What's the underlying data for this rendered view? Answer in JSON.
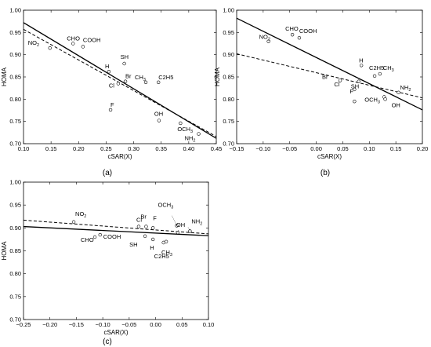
{
  "chart_data": [
    {
      "id": "a",
      "type": "scatter",
      "caption": "(a)",
      "xlabel": "cSAR(X)",
      "ylabel": "HOMA",
      "xlim": [
        0.1,
        0.45
      ],
      "ylim": [
        0.7,
        1.0
      ],
      "xticks": [
        "0.10",
        "0.15",
        "0.20",
        "0.25",
        "0.30",
        "0.35",
        "0.40",
        "0.45"
      ],
      "yticks": [
        "0.70",
        "0.75",
        "0.80",
        "0.85",
        "0.90",
        "0.95",
        "1.00"
      ],
      "points": [
        {
          "label": "NO2",
          "x": 0.148,
          "y": 0.915
        },
        {
          "label": "CHO",
          "x": 0.19,
          "y": 0.925
        },
        {
          "label": "COOH",
          "x": 0.208,
          "y": 0.918
        },
        {
          "label": "H",
          "x": 0.255,
          "y": 0.862
        },
        {
          "label": "SH",
          "x": 0.283,
          "y": 0.88
        },
        {
          "label": "Br",
          "x": 0.285,
          "y": 0.84
        },
        {
          "label": "Cl",
          "x": 0.272,
          "y": 0.835
        },
        {
          "label": "CH3",
          "x": 0.322,
          "y": 0.838
        },
        {
          "label": "C2H5",
          "x": 0.345,
          "y": 0.838
        },
        {
          "label": "F",
          "x": 0.258,
          "y": 0.776
        },
        {
          "label": "OH",
          "x": 0.346,
          "y": 0.752
        },
        {
          "label": "OCH3",
          "x": 0.385,
          "y": 0.746
        },
        {
          "label": "NH2",
          "x": 0.418,
          "y": 0.722
        }
      ],
      "lines": [
        {
          "style": "solid",
          "x": [
            0.1,
            0.45
          ],
          "y": [
            0.972,
            0.712
          ]
        },
        {
          "style": "dashed",
          "x": [
            0.1,
            0.45
          ],
          "y": [
            0.957,
            0.716
          ]
        }
      ]
    },
    {
      "id": "b",
      "type": "scatter",
      "caption": "(b)",
      "xlabel": "cSAR(X)",
      "ylabel": "HOMA",
      "xlim": [
        -0.15,
        0.2
      ],
      "ylim": [
        0.7,
        1.0
      ],
      "xticks": [
        "−0.15",
        "−0.10",
        "−0.05",
        "0.00",
        "0.05",
        "0.10",
        "0.15",
        "0.20"
      ],
      "yticks": [
        "0.70",
        "0.75",
        "0.80",
        "0.85",
        "0.90",
        "0.95",
        "1.00"
      ],
      "points": [
        {
          "label": "NO2",
          "x": -0.09,
          "y": 0.93
        },
        {
          "label": "CHO",
          "x": -0.045,
          "y": 0.945
        },
        {
          "label": "COOH",
          "x": -0.032,
          "y": 0.938
        },
        {
          "label": "H",
          "x": 0.085,
          "y": 0.876
        },
        {
          "label": "C2H5",
          "x": 0.11,
          "y": 0.852
        },
        {
          "label": "CH3",
          "x": 0.12,
          "y": 0.857
        },
        {
          "label": "Br",
          "x": 0.045,
          "y": 0.842
        },
        {
          "label": "SH",
          "x": 0.08,
          "y": 0.84
        },
        {
          "label": "Cl",
          "x": 0.072,
          "y": 0.822
        },
        {
          "label": "F",
          "x": 0.072,
          "y": 0.795
        },
        {
          "label": "OCH3",
          "x": 0.128,
          "y": 0.805
        },
        {
          "label": "OH",
          "x": 0.13,
          "y": 0.8
        },
        {
          "label": "NH2",
          "x": 0.155,
          "y": 0.815
        }
      ],
      "lines": [
        {
          "style": "solid",
          "x": [
            -0.15,
            0.2
          ],
          "y": [
            0.982,
            0.776
          ]
        },
        {
          "style": "dashed",
          "x": [
            -0.15,
            0.2
          ],
          "y": [
            0.902,
            0.803
          ]
        }
      ]
    },
    {
      "id": "c",
      "type": "scatter",
      "caption": "(c)",
      "xlabel": "cSAR(X)",
      "ylabel": "HOMA",
      "xlim": [
        -0.25,
        0.1
      ],
      "ylim": [
        0.7,
        1.0
      ],
      "xticks": [
        "−0.25",
        "−0.20",
        "−0.15",
        "−0.10",
        "−0.05",
        "0.00",
        "0.05",
        "0.10"
      ],
      "yticks": [
        "0.70",
        "0.75",
        "0.80",
        "0.85",
        "0.90",
        "0.95",
        "1.00"
      ],
      "points": [
        {
          "label": "NO2",
          "x": -0.155,
          "y": 0.913
        },
        {
          "label": "CHO",
          "x": -0.115,
          "y": 0.88
        },
        {
          "label": "COOH",
          "x": -0.105,
          "y": 0.885
        },
        {
          "label": "Cl",
          "x": -0.032,
          "y": 0.903
        },
        {
          "label": "Br",
          "x": -0.018,
          "y": 0.903
        },
        {
          "label": "F",
          "x": -0.005,
          "y": 0.9
        },
        {
          "label": "SH",
          "x": -0.02,
          "y": 0.882
        },
        {
          "label": "H",
          "x": -0.005,
          "y": 0.875
        },
        {
          "label": "C2H5",
          "x": 0.015,
          "y": 0.868
        },
        {
          "label": "CH3",
          "x": 0.02,
          "y": 0.87
        },
        {
          "label": "OCH3",
          "x": 0.04,
          "y": 0.905
        },
        {
          "label": "OH",
          "x": 0.042,
          "y": 0.89
        },
        {
          "label": "NH2",
          "x": 0.065,
          "y": 0.893
        }
      ],
      "lines": [
        {
          "style": "solid",
          "x": [
            -0.25,
            0.1
          ],
          "y": [
            0.903,
            0.883
          ]
        },
        {
          "style": "dashed",
          "x": [
            -0.25,
            0.1
          ],
          "y": [
            0.917,
            0.887
          ]
        }
      ]
    }
  ]
}
